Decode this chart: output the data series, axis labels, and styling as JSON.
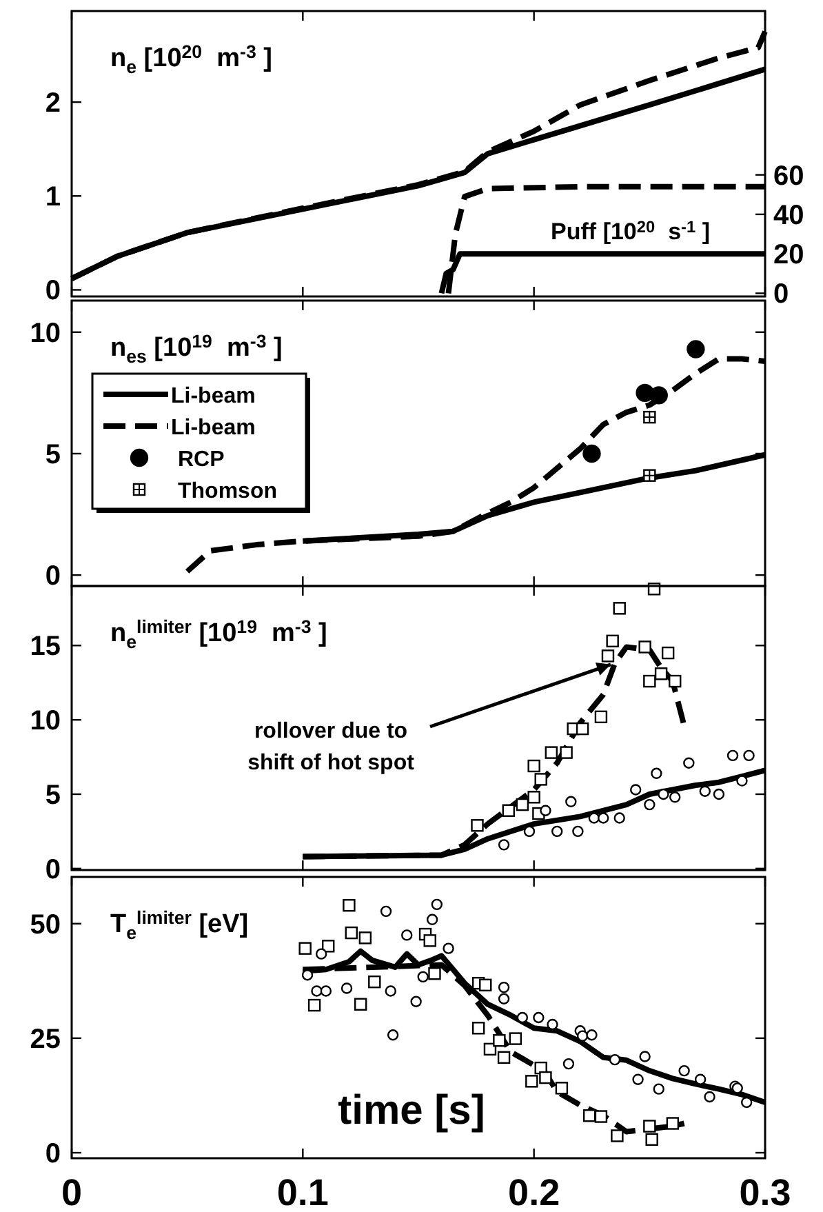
{
  "chart_data": [
    {
      "type": "line",
      "title": "n$_{e}$ [10$^{20}$  m$^{-3}$ ]",
      "y2label": "Puff [10$^{20}$  s$^{-1}$ ]",
      "xlim": [
        0,
        0.3
      ],
      "xticks": [
        0,
        0.1,
        0.2,
        0.3
      ],
      "ylim": [
        -0.07,
        2.97
      ],
      "yticks": [
        0,
        1,
        2
      ],
      "y2lim": [
        -1.6,
        143
      ],
      "y2ticks": [
        0,
        20,
        40,
        60
      ],
      "tick_labels": "y",
      "grid": false,
      "legend": false,
      "series": [
        {
          "color": "#000000",
          "line_style": "solid",
          "x": [
            0,
            0.02,
            0.05,
            0.1,
            0.15,
            0.17,
            0.18,
            0.2,
            0.25,
            0.3
          ],
          "values": [
            0.12,
            0.36,
            0.61,
            0.86,
            1.11,
            1.25,
            1.45,
            1.6,
            1.97,
            2.35
          ]
        },
        {
          "color": "#000000",
          "line_style": "dashed",
          "x": [
            0,
            0.02,
            0.05,
            0.1,
            0.15,
            0.17,
            0.18,
            0.2,
            0.22,
            0.25,
            0.28,
            0.297,
            0.3
          ],
          "values": [
            0.12,
            0.36,
            0.61,
            0.87,
            1.12,
            1.26,
            1.47,
            1.69,
            1.97,
            2.23,
            2.47,
            2.58,
            2.75
          ]
        },
        {
          "color": "#000000",
          "line_style": "solid",
          "axis": "y2",
          "x": [
            0.16,
            0.162,
            0.165,
            0.168,
            0.2,
            0.25,
            0.3
          ],
          "values": [
            0,
            10,
            12,
            20,
            20,
            20,
            20
          ]
        },
        {
          "color": "#000000",
          "line_style": "dashed",
          "axis": "y2",
          "x": [
            0.163,
            0.166,
            0.17,
            0.18,
            0.22,
            0.26,
            0.3
          ],
          "values": [
            0,
            30,
            49,
            53,
            54,
            54,
            54
          ]
        }
      ]
    },
    {
      "type": "line",
      "title": "n$_{es}$ [10$^{19}$  m$^{-3}$ ]",
      "xlim": [
        0,
        0.3
      ],
      "xticks": [
        0,
        0.1,
        0.2,
        0.3
      ],
      "ylim": [
        -0.45,
        11.3
      ],
      "yticks": [
        0,
        5,
        10
      ],
      "tick_labels": "y",
      "grid": false,
      "legend": "top left",
      "series": [
        {
          "name": "Li-beam",
          "color": "#000000",
          "line_style": "solid",
          "x": [
            0.1,
            0.15,
            0.165,
            0.18,
            0.2,
            0.22,
            0.25,
            0.27,
            0.3
          ],
          "values": [
            1.4,
            1.68,
            1.8,
            2.45,
            3.0,
            3.4,
            4.0,
            4.3,
            4.95
          ]
        },
        {
          "name": "Li-beam",
          "color": "#000000",
          "line_style": "dashed",
          "x": [
            0.05,
            0.06,
            0.08,
            0.1,
            0.15,
            0.165,
            0.18,
            0.19,
            0.2,
            0.22,
            0.23,
            0.24,
            0.25,
            0.26,
            0.27,
            0.28,
            0.29,
            0.3
          ],
          "values": [
            0.15,
            1.0,
            1.25,
            1.4,
            1.6,
            1.8,
            2.55,
            3.0,
            3.6,
            5.2,
            6.2,
            6.7,
            7.0,
            7.6,
            8.3,
            8.9,
            8.9,
            8.8
          ]
        },
        {
          "type": "scatter",
          "name": "RCP",
          "color": "#000000",
          "marker": "circle",
          "x": [
            0.225,
            0.248,
            0.254,
            0.27
          ],
          "values": [
            5.0,
            7.5,
            7.4,
            9.3
          ]
        },
        {
          "type": "scatter",
          "name": "Thomson",
          "color": "#000000",
          "marker": "square",
          "x": [
            0.25,
            0.25
          ],
          "values": [
            6.5,
            4.1
          ]
        }
      ]
    },
    {
      "type": "line",
      "title": "n$_{e}$$^{limiter}$ [10$^{19}$  m$^{-3}$ ]",
      "xlim": [
        0,
        0.3
      ],
      "xticks": [
        0,
        0.1,
        0.2,
        0.3
      ],
      "ylim": [
        -0.1,
        19
      ],
      "yticks": [
        0,
        5,
        10,
        15
      ],
      "tick_labels": "y",
      "grid": false,
      "legend": false,
      "annotations": [
        {
          "text": "rollover due to shift of hot spot",
          "x": 0.235,
          "y": 14
        }
      ],
      "series": [
        {
          "color": "#000000",
          "line_style": "solid",
          "x": [
            0.1,
            0.16,
            0.17,
            0.18,
            0.2,
            0.22,
            0.24,
            0.25,
            0.26,
            0.27,
            0.28,
            0.29,
            0.3
          ],
          "values": [
            0.8,
            0.9,
            1.3,
            2.0,
            3.0,
            3.5,
            4.3,
            5.0,
            5.3,
            5.6,
            5.8,
            6.2,
            6.6
          ]
        },
        {
          "color": "#000000",
          "line_style": "dashed",
          "x": [
            0.1,
            0.16,
            0.17,
            0.18,
            0.2,
            0.21,
            0.22,
            0.23,
            0.235,
            0.24,
            0.25,
            0.255,
            0.26,
            0.265
          ],
          "values": [
            0.8,
            0.9,
            1.6,
            3.0,
            5.3,
            7.1,
            9.8,
            11.7,
            13.8,
            14.9,
            14.7,
            13.5,
            12.6,
            9.6
          ]
        },
        {
          "type": "scatter",
          "color": "#000000",
          "marker": "square",
          "x": [
            0.1755,
            0.189,
            0.195,
            0.2,
            0.202,
            0.203,
            0.2,
            0.2075,
            0.214,
            0.217,
            0.221,
            0.229,
            0.232,
            0.234,
            0.237,
            0.248,
            0.25,
            0.252,
            0.255,
            0.258,
            0.261
          ],
          "values": [
            2.9,
            3.9,
            4.3,
            4.8,
            3.7,
            6.0,
            6.9,
            7.8,
            7.8,
            9.4,
            9.4,
            10.2,
            14.3,
            15.3,
            17.5,
            14.9,
            12.6,
            18.8,
            13.1,
            14.5,
            12.6
          ]
        },
        {
          "type": "scatter",
          "color": "#000000",
          "marker": "circle",
          "x": [
            0.187,
            0.198,
            0.205,
            0.21,
            0.216,
            0.219,
            0.226,
            0.23,
            0.237,
            0.244,
            0.25,
            0.253,
            0.256,
            0.261,
            0.267,
            0.274,
            0.28,
            0.286,
            0.29,
            0.293
          ],
          "values": [
            1.6,
            2.5,
            3.9,
            2.5,
            4.5,
            2.5,
            3.4,
            3.4,
            3.4,
            5.3,
            4.3,
            6.4,
            5.0,
            4.8,
            7.1,
            5.2,
            5.0,
            7.6,
            5.9,
            7.6
          ]
        }
      ]
    },
    {
      "type": "line",
      "title": "T$_{e}$$^{limiter}$ [eV]",
      "xlabel": "time [s]",
      "xlim": [
        0,
        0.3
      ],
      "xticks": [
        0,
        0.1,
        0.2,
        0.3
      ],
      "ylim": [
        -1.2,
        60.2
      ],
      "yticks": [
        0,
        25,
        50
      ],
      "grid": false,
      "legend": false,
      "series": [
        {
          "color": "#000000",
          "line_style": "solid",
          "x": [
            0.1,
            0.11,
            0.12,
            0.125,
            0.13,
            0.14,
            0.145,
            0.15,
            0.155,
            0.16,
            0.17,
            0.18,
            0.19,
            0.2,
            0.21,
            0.22,
            0.23,
            0.24,
            0.25,
            0.26,
            0.27,
            0.28,
            0.29,
            0.3
          ],
          "values": [
            39.6,
            40,
            41.7,
            44,
            42,
            40.5,
            43.4,
            41,
            41.9,
            43,
            37,
            32.4,
            30,
            27.2,
            26.6,
            24.3,
            20.8,
            20.2,
            17.9,
            16.2,
            15,
            13.9,
            12.7,
            11
          ]
        },
        {
          "color": "#000000",
          "line_style": "dashed",
          "x": [
            0.1,
            0.16,
            0.17,
            0.18,
            0.185,
            0.19,
            0.2,
            0.205,
            0.21,
            0.22,
            0.23,
            0.24,
            0.25,
            0.26,
            0.265
          ],
          "values": [
            40,
            41,
            36.5,
            30,
            26,
            22,
            19.1,
            17.4,
            13.3,
            10.4,
            8.1,
            4.6,
            5.2,
            5.8,
            6.4
          ]
        },
        {
          "type": "scatter",
          "color": "#000000",
          "marker": "square",
          "x": [
            0.101,
            0.105,
            0.111,
            0.12,
            0.121,
            0.125,
            0.127,
            0.131,
            0.153,
            0.155,
            0.157,
            0.176,
            0.179,
            0.176,
            0.181,
            0.185,
            0.187,
            0.192,
            0.199,
            0.203,
            0.205,
            0.212,
            0.224,
            0.229,
            0.236,
            0.251,
            0.26,
            0.25
          ],
          "values": [
            44.6,
            32.2,
            45.1,
            54,
            48,
            32.4,
            46.9,
            37.3,
            47.7,
            46.3,
            39.1,
            37,
            36.6,
            27.2,
            22.6,
            24.5,
            20.8,
            24.9,
            15.6,
            18.5,
            16.4,
            14.1,
            8.1,
            7.9,
            3.7,
            2.9,
            6.4,
            5.8
          ]
        },
        {
          "type": "scatter",
          "color": "#000000",
          "marker": "circle",
          "x": [
            0.102,
            0.106,
            0.11,
            0.108,
            0.119,
            0.136,
            0.138,
            0.139,
            0.145,
            0.149,
            0.152,
            0.156,
            0.158,
            0.163,
            0.187,
            0.187,
            0.195,
            0.202,
            0.208,
            0.215,
            0.22,
            0.221,
            0.225,
            0.235,
            0.245,
            0.248,
            0.254,
            0.265,
            0.272,
            0.276,
            0.287,
            0.288,
            0.292
          ],
          "values": [
            38.8,
            35.3,
            35.3,
            43.4,
            35.9,
            52.7,
            35.3,
            25.7,
            47.5,
            33,
            38.4,
            50.9,
            54.2,
            44.6,
            36.1,
            33.6,
            29.5,
            29.5,
            28,
            19.4,
            26.6,
            25.5,
            25.7,
            20.3,
            16,
            21,
            13.9,
            17.9,
            16,
            12.2,
            14.5,
            14.1,
            11
          ]
        }
      ]
    }
  ]
}
